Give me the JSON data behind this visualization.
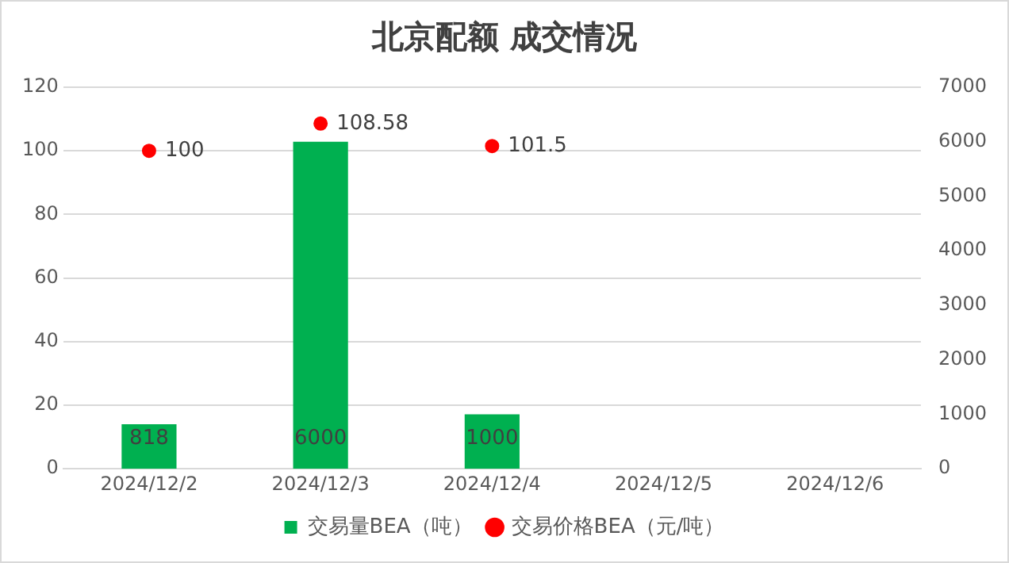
{
  "chart_data": {
    "type": "bar",
    "title": "北京配额 成交情况",
    "categories": [
      "2024/12/2",
      "2024/12/3",
      "2024/12/4",
      "2024/12/5",
      "2024/12/6"
    ],
    "series": [
      {
        "name": "交易量BEA（吨）",
        "axis": "y2",
        "color": "#00b050",
        "values": [
          818,
          6000,
          1000,
          null,
          null
        ]
      },
      {
        "name": "交易价格BEA（元/吨）",
        "type": "scatter",
        "axis": "y",
        "color": "#ff0000",
        "values": [
          100,
          108.58,
          101.5,
          null,
          null
        ]
      }
    ],
    "ylim": [
      0,
      120
    ],
    "yticks": [
      0,
      20,
      40,
      60,
      80,
      100,
      120
    ],
    "y2lim": [
      0,
      7000
    ],
    "y2ticks": [
      0,
      1000,
      2000,
      3000,
      4000,
      5000,
      6000,
      7000
    ],
    "grid": "y",
    "legend": "bottom",
    "data_labels": true,
    "marker": "circle"
  }
}
